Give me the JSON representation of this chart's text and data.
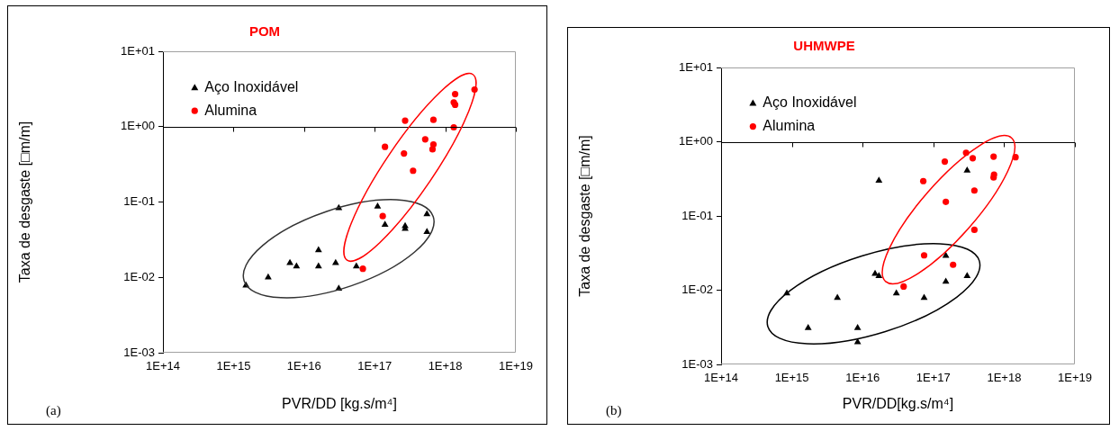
{
  "chart_data": [
    {
      "type": "scatter",
      "title": "POM",
      "xlabel": "PVR/DD [kg.s/m⁴]",
      "ylabel": "Taxa de desgaste [□m/m]",
      "log": "xy",
      "grid": false,
      "legend": "top left",
      "xlim": [
        100000000000000.0,
        1e+19
      ],
      "ylim": [
        0.001,
        10
      ],
      "xticks": [
        {
          "value": 100000000000000.0,
          "label": "1E+14"
        },
        {
          "value": 1000000000000000.0,
          "label": "1E+15"
        },
        {
          "value": 1e+16,
          "label": "1E+16"
        },
        {
          "value": 1e+17,
          "label": "1E+17"
        },
        {
          "value": 1e+18,
          "label": "1E+18"
        },
        {
          "value": 1e+19,
          "label": "1E+19"
        }
      ],
      "yticks": [
        {
          "value": 0.001,
          "label": "1E-03"
        },
        {
          "value": 0.01,
          "label": "1E-02"
        },
        {
          "value": 0.1,
          "label": "1E-01"
        },
        {
          "value": 1,
          "label": "1E+00"
        },
        {
          "value": 10,
          "label": "1E+01"
        }
      ],
      "ref_lines": [
        {
          "axis": "y",
          "value": 1,
          "color": "#000000"
        }
      ],
      "annotations": [
        "(a)"
      ],
      "series": [
        {
          "name": "Aço Inoxidável",
          "color": "#000000",
          "marker": "triangle",
          "x": [
            1500000000000000.0,
            3100000000000000.0,
            6300000000000000.0,
            7800000000000000.0,
            1.6e+16,
            1.6e+16,
            2.8e+16,
            3.1e+16,
            3.1e+16,
            5.5e+16,
            1.1e+17,
            1.4e+17,
            2.7e+17,
            2.7e+17,
            5.5e+17,
            5.5e+17
          ],
          "values": [
            0.0078,
            0.01,
            0.0155,
            0.014,
            0.023,
            0.014,
            0.0155,
            0.083,
            0.0071,
            0.014,
            0.087,
            0.05,
            0.048,
            0.044,
            0.069,
            0.04
          ]
        },
        {
          "name": "Alumina",
          "color": "#ff0000",
          "marker": "circle",
          "x": [
            6.8e+16,
            1.3e+17,
            1.4e+17,
            2.6e+17,
            2.7e+17,
            3.5e+17,
            5.2e+17,
            6.8e+17,
            6.6e+17,
            6.8e+17,
            1.32e+18,
            1.38e+18,
            1.32e+18,
            1.38e+18,
            2.6e+18
          ],
          "values": [
            0.013,
            0.065,
            0.54,
            0.44,
            1.2,
            0.26,
            0.68,
            0.58,
            0.5,
            1.23,
            0.98,
            2.7,
            2.1,
            1.95,
            3.1
          ]
        }
      ]
    },
    {
      "type": "scatter",
      "title": "UHMWPE",
      "xlabel": "PVR/DD[kg.s/m⁴]",
      "ylabel": "Taxa de desgaste [□m/m]",
      "log": "xy",
      "grid": false,
      "legend": "top left",
      "xlim": [
        100000000000000.0,
        1e+19
      ],
      "ylim": [
        0.001,
        10
      ],
      "xticks": [
        {
          "value": 100000000000000.0,
          "label": "1E+14"
        },
        {
          "value": 1000000000000000.0,
          "label": "1E+15"
        },
        {
          "value": 1e+16,
          "label": "1E+16"
        },
        {
          "value": 1e+17,
          "label": "1E+17"
        },
        {
          "value": 1e+18,
          "label": "1E+18"
        },
        {
          "value": 1e+19,
          "label": "1E+19"
        }
      ],
      "yticks": [
        {
          "value": 0.001,
          "label": "1E-03"
        },
        {
          "value": 0.01,
          "label": "1E-02"
        },
        {
          "value": 0.1,
          "label": "1E-01"
        },
        {
          "value": 1,
          "label": "1E+00"
        },
        {
          "value": 10,
          "label": "1E+01"
        }
      ],
      "ref_lines": [
        {
          "axis": "y",
          "value": 1,
          "color": "#000000"
        }
      ],
      "annotations": [
        "(b)"
      ],
      "series": [
        {
          "name": "Aço Inoxidável",
          "color": "#000000",
          "marker": "triangle",
          "x": [
            850000000000000.0,
            1700000000000000.0,
            4400000000000000.0,
            8500000000000000.0,
            8500000000000000.0,
            1.5e+16,
            1.7e+16,
            1.7e+16,
            3e+16,
            7.4e+16,
            1.5e+17,
            1.5e+17,
            3e+17,
            3e+17
          ],
          "values": [
            0.0091,
            0.0031,
            0.0079,
            0.0031,
            0.002,
            0.0166,
            0.0155,
            0.3,
            0.0091,
            0.0079,
            0.029,
            0.013,
            0.0155,
            0.41
          ]
        },
        {
          "name": "Alumina",
          "color": "#ff0000",
          "marker": "circle",
          "x": [
            3.8e+16,
            7.2e+16,
            7.4e+16,
            1.45e+17,
            1.5e+17,
            1.9e+17,
            2.9e+17,
            3.6e+17,
            3.8e+17,
            3.8e+17,
            7.1e+17,
            7.2e+17,
            7.1e+17,
            1.45e+18
          ],
          "values": [
            0.0112,
            0.295,
            0.0295,
            0.54,
            0.155,
            0.022,
            0.71,
            0.6,
            0.22,
            0.065,
            0.63,
            0.36,
            0.33,
            0.62
          ]
        }
      ]
    }
  ]
}
